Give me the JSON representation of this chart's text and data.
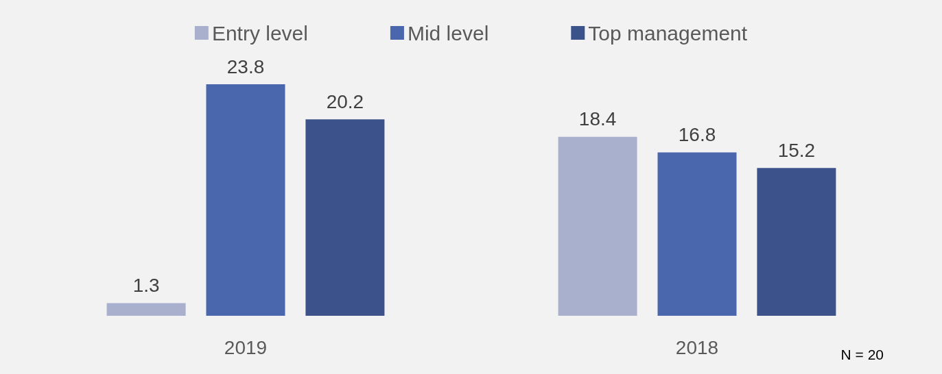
{
  "chart_data": {
    "type": "bar",
    "categories": [
      "2019",
      "2018"
    ],
    "series": [
      {
        "name": "Entry level",
        "color": "#a9b0cd",
        "values": [
          1.3,
          18.4
        ]
      },
      {
        "name": "Mid level",
        "color": "#4a66ad",
        "values": [
          23.8,
          16.8
        ]
      },
      {
        "name": "Top management",
        "color": "#3c528a",
        "values": [
          20.2,
          15.2
        ]
      }
    ],
    "data_labels": true,
    "legend": "top",
    "annotations": [
      "N = 20"
    ]
  }
}
